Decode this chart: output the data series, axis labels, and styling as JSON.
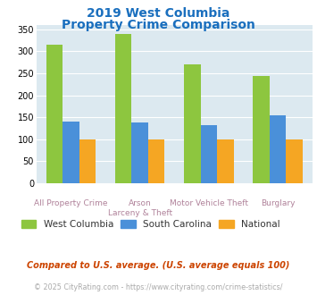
{
  "title_line1": "2019 West Columbia",
  "title_line2": "Property Crime Comparison",
  "cat_labels_top": [
    "All Property Crime",
    "Arson",
    "Motor Vehicle Theft",
    "Burglary"
  ],
  "cat_labels_bot": [
    "",
    "Larceny & Theft",
    "",
    ""
  ],
  "west_columbia": [
    316,
    340,
    271,
    243
  ],
  "south_carolina": [
    140,
    137,
    131,
    155
  ],
  "national": [
    100,
    100,
    100,
    100
  ],
  "bar_colors": {
    "west_columbia": "#8dc63f",
    "south_carolina": "#4a90d9",
    "national": "#f5a623"
  },
  "ylim": [
    0,
    360
  ],
  "yticks": [
    0,
    50,
    100,
    150,
    200,
    250,
    300,
    350
  ],
  "background_color": "#dce9f0",
  "title_color": "#1a6fbe",
  "legend_labels": [
    "West Columbia",
    "South Carolina",
    "National"
  ],
  "footnote1": "Compared to U.S. average. (U.S. average equals 100)",
  "footnote2": "© 2025 CityRating.com - https://www.cityrating.com/crime-statistics/",
  "footnote1_color": "#cc4400",
  "footnote2_color": "#aaaaaa",
  "xlabel_color": "#b8860b"
}
